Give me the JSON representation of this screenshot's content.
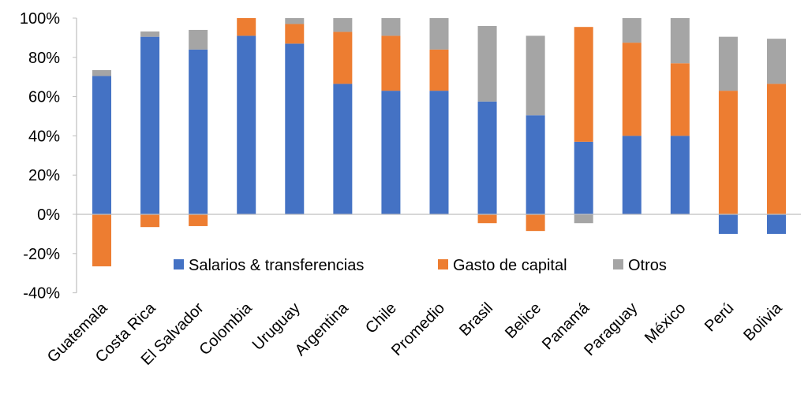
{
  "chart_data": {
    "type": "bar",
    "stacked": true,
    "title": "",
    "xlabel": "",
    "ylabel": "",
    "ylim": [
      -40,
      100
    ],
    "yticks": [
      "-40%",
      "-20%",
      "0%",
      "20%",
      "40%",
      "60%",
      "80%",
      "100%"
    ],
    "ytick_values": [
      -40,
      -20,
      0,
      20,
      40,
      60,
      80,
      100
    ],
    "grid": false,
    "legend_position": "bottom-inside",
    "categories": [
      "Guatemala",
      "Costa Rica",
      "El Salvador",
      "Colombia",
      "Uruguay",
      "Argentina",
      "Chile",
      "Promedio",
      "Brasil",
      "Belice",
      "Panamá",
      "Paraguay",
      "México",
      "Perú",
      "Bolivia"
    ],
    "series": [
      {
        "name": "Salarios & transferencias",
        "color": "#4472C4",
        "values": [
          70.5,
          90.5,
          84,
          91,
          87,
          66.5,
          63,
          63,
          57.5,
          50.5,
          37,
          40,
          40,
          -10,
          -10
        ]
      },
      {
        "name": "Gasto de capital",
        "color": "#ED7D31",
        "values": [
          -26.5,
          -6.5,
          -6,
          9,
          10,
          26.5,
          28,
          21,
          -4.5,
          -8.5,
          58.5,
          47.5,
          37,
          63,
          66.5
        ]
      },
      {
        "name": "Otros",
        "color": "#A5A5A5",
        "values": [
          3,
          2.7,
          10,
          0,
          3,
          7,
          9,
          16,
          38.5,
          40.5,
          -4.5,
          12.5,
          23,
          27.5,
          23
        ]
      }
    ]
  }
}
